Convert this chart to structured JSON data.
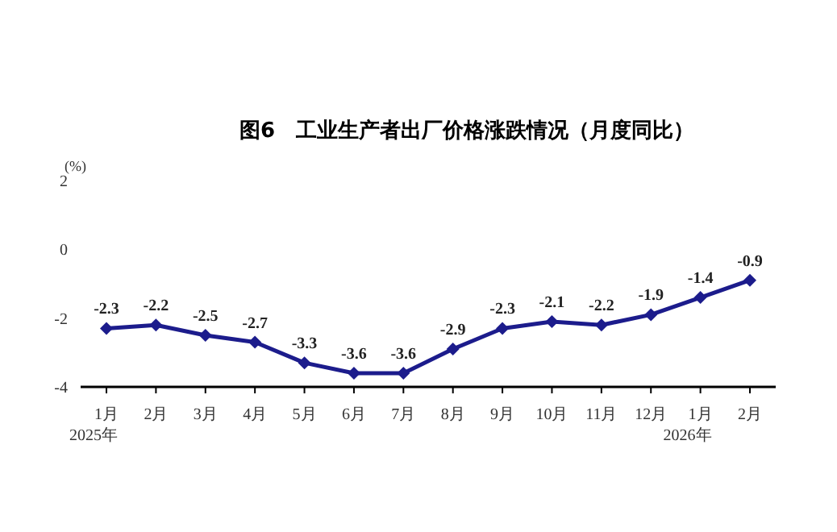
{
  "chart_data": {
    "type": "line",
    "title": "图6　工业生产者出厂价格涨跌情况（月度同比）",
    "ylabel": "(%)",
    "categories": [
      "1月\n2025年",
      "2月",
      "3月",
      "4月",
      "5月",
      "6月",
      "7月",
      "8月",
      "9月",
      "10月",
      "11月",
      "12月",
      "1月\n2026年",
      "2月"
    ],
    "series": [
      {
        "color": "#1c1c8c",
        "values": [
          -2.3,
          -2.2,
          -2.5,
          -2.7,
          -3.3,
          -3.6,
          -3.6,
          -2.9,
          -2.3,
          -2.1,
          -2.2,
          -1.9,
          -1.4,
          -0.9
        ]
      }
    ],
    "ylim": [
      -4,
      2
    ],
    "yticks": [
      -4,
      -2,
      0,
      2
    ],
    "marker": "diamond",
    "line_style": "solid",
    "data_labels": true
  }
}
